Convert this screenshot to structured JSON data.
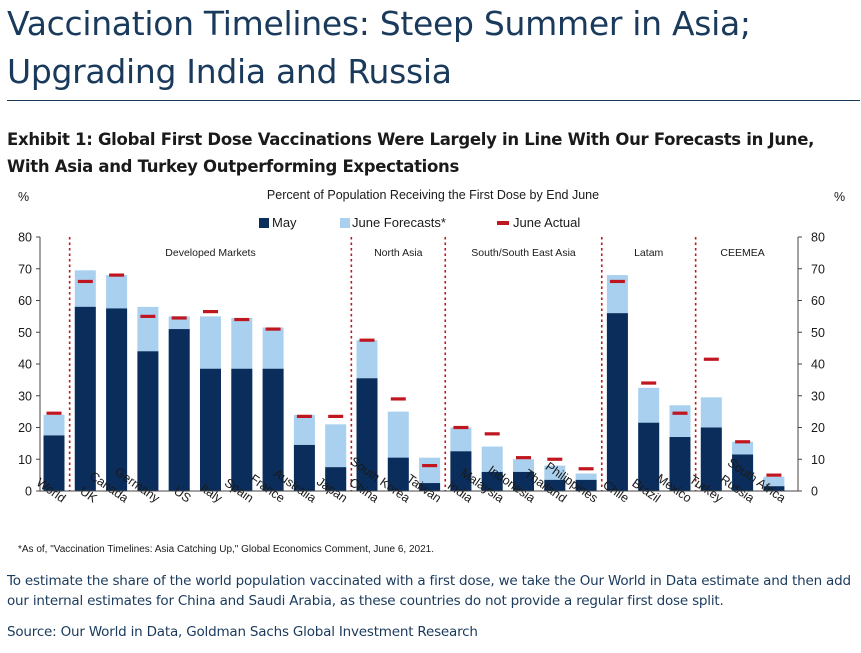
{
  "page": {
    "headline": "Vaccination Timelines: Steep Summer in Asia; Upgrading India and Russia",
    "exhibit_title": "Exhibit 1: Global First Dose Vaccinations Were Largely in Line With Our Forecasts in June, With Asia and Turkey Outperforming Expectations",
    "body_text": "To estimate the share of the world population vaccinated with a first dose, we take the Our World in Data estimate and then add our internal estimates for China and Saudi Arabia, as these countries do not provide a regular first dose split.",
    "source": "Source: Our World in Data, Goldman Sachs Global Investment Research"
  },
  "chart_data": {
    "type": "bar",
    "title": "Percent of Population Receiving the First Dose by End June",
    "ylabel_left": "%",
    "ylabel_right": "%",
    "ylim": [
      0,
      80
    ],
    "yticks": [
      0,
      10,
      20,
      30,
      40,
      50,
      60,
      70,
      80
    ],
    "grid": false,
    "legend_position": "top-center",
    "footnote": "*As of, \"Vaccination Timelines: Asia Catching Up,\" Global Economics Comment, June 6, 2021.",
    "categories": [
      "World",
      "UK",
      "Canada",
      "Germany",
      "US",
      "Italy",
      "Spain",
      "France",
      "Australia",
      "Japan",
      "China",
      "South Korea",
      "Taiwan",
      "India",
      "Malaysia",
      "Indonesia",
      "Thailand",
      "Philippines",
      "Chile",
      "Brazil",
      "Mexico",
      "Turkey",
      "Russia",
      "South Africa"
    ],
    "series": [
      {
        "name": "May",
        "kind": "bar",
        "color": "#0b2d5b",
        "values": [
          17.5,
          58,
          57.5,
          44,
          51,
          38.5,
          38.5,
          38.5,
          14.5,
          7.5,
          35.5,
          10.5,
          2.5,
          12.5,
          6,
          6,
          3.5,
          3.5,
          56,
          21.5,
          17,
          20,
          11.5,
          1.5
        ]
      },
      {
        "name": "June Forecasts*",
        "kind": "bar",
        "color": "#a9d0ee",
        "values": [
          24,
          69.5,
          68,
          58,
          55,
          55,
          54.5,
          51.5,
          24,
          21,
          47.5,
          25,
          10.5,
          20,
          14,
          10,
          8,
          5.5,
          68,
          32.5,
          27,
          29.5,
          15.5,
          4.5
        ]
      },
      {
        "name": "June Actual",
        "kind": "marker",
        "color": "#c0161f",
        "values": [
          24.5,
          66,
          68,
          55,
          54.5,
          56.5,
          54,
          51,
          23.5,
          23.5,
          47.5,
          29,
          8,
          20,
          18,
          10.5,
          10,
          7,
          66,
          34,
          24.5,
          41.5,
          15.5,
          5
        ]
      }
    ],
    "groups": [
      {
        "label": "Developed Markets"
      },
      {
        "label": "North Asia"
      },
      {
        "label": "South/South East Asia"
      },
      {
        "label": "Latam"
      },
      {
        "label": "CEEMEA"
      }
    ]
  }
}
